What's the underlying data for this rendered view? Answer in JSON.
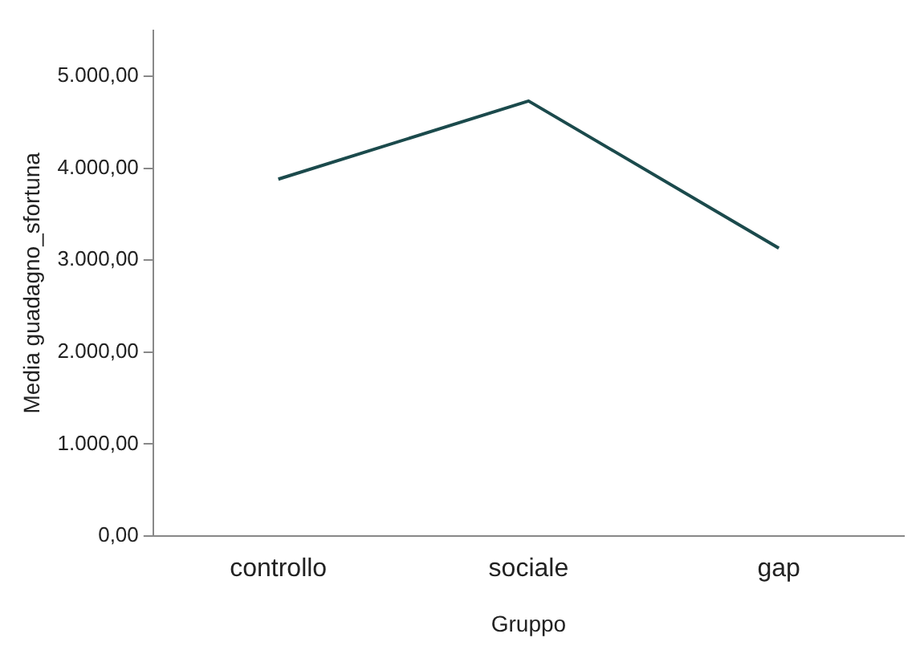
{
  "chart_data": {
    "type": "line",
    "xlabel": "Gruppo",
    "ylabel": "Media guadagno_sfortuna",
    "categories": [
      "controllo",
      "sociale",
      "gap"
    ],
    "series": [
      {
        "color": "#1b4a4c",
        "values": [
          3880,
          4730,
          3130
        ]
      }
    ],
    "ylim": [
      0,
      5500
    ],
    "yticks": [
      {
        "value": 0,
        "label": "0,00"
      },
      {
        "value": 1000,
        "label": "1.000,00"
      },
      {
        "value": 2000,
        "label": "2.000,00"
      },
      {
        "value": 3000,
        "label": "3.000,00"
      },
      {
        "value": 4000,
        "label": "4.000,00"
      },
      {
        "value": 5000,
        "label": "5.000,00"
      }
    ],
    "grid": false,
    "legend": false,
    "marker": "none",
    "line_style": "solid"
  }
}
